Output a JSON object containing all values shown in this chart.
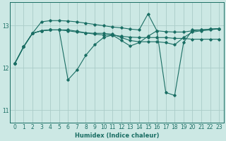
{
  "xlabel": "Humidex (Indice chaleur)",
  "background_color": "#cce8e4",
  "grid_color": "#aaccc8",
  "line_color": "#1a6e64",
  "xlim": [
    -0.5,
    23.5
  ],
  "ylim": [
    10.7,
    13.55
  ],
  "yticks": [
    11,
    12,
    13
  ],
  "xticks": [
    0,
    1,
    2,
    3,
    4,
    5,
    6,
    7,
    8,
    9,
    10,
    11,
    12,
    13,
    14,
    15,
    16,
    17,
    18,
    19,
    20,
    21,
    22,
    23
  ],
  "lines": [
    {
      "x": [
        0,
        1,
        2,
        3,
        4,
        5,
        6,
        7,
        8,
        9,
        10,
        11,
        12,
        13,
        14,
        15,
        16,
        17,
        18,
        19,
        20,
        21,
        22,
        23
      ],
      "y": [
        12.1,
        12.5,
        12.82,
        13.09,
        13.12,
        13.12,
        13.11,
        13.09,
        13.06,
        13.03,
        13.0,
        12.97,
        12.95,
        12.92,
        12.9,
        13.28,
        12.88,
        12.86,
        12.85,
        12.85,
        12.88,
        12.9,
        12.92,
        12.93
      ]
    },
    {
      "x": [
        0,
        1,
        2,
        3,
        4,
        5,
        6,
        7,
        8,
        9,
        10,
        11,
        12,
        13,
        14,
        15,
        16,
        17,
        18,
        19,
        20,
        21,
        22,
        23
      ],
      "y": [
        12.1,
        12.5,
        12.82,
        12.88,
        12.9,
        12.9,
        12.9,
        12.87,
        12.83,
        12.8,
        12.78,
        12.78,
        12.75,
        12.73,
        12.72,
        12.72,
        12.72,
        12.72,
        12.7,
        12.7,
        12.68,
        12.68,
        12.68,
        12.68
      ]
    },
    {
      "x": [
        0,
        1,
        2,
        3,
        4,
        5,
        6,
        7,
        8,
        9,
        10,
        11,
        12,
        13,
        14,
        15,
        16,
        17,
        18,
        19,
        20,
        21,
        22,
        23
      ],
      "y": [
        12.1,
        12.5,
        12.82,
        12.88,
        12.9,
        12.9,
        11.72,
        11.95,
        12.3,
        12.55,
        12.72,
        12.78,
        12.65,
        12.52,
        12.6,
        12.75,
        12.88,
        11.42,
        11.35,
        12.6,
        12.9,
        12.9,
        12.92,
        12.93
      ]
    },
    {
      "x": [
        0,
        1,
        2,
        3,
        4,
        5,
        6,
        7,
        8,
        9,
        10,
        11,
        12,
        13,
        14,
        15,
        16,
        17,
        18,
        19,
        20,
        21,
        22,
        23
      ],
      "y": [
        12.1,
        12.5,
        12.82,
        12.88,
        12.9,
        12.9,
        12.88,
        12.85,
        12.83,
        12.82,
        12.82,
        12.8,
        12.72,
        12.65,
        12.62,
        12.62,
        12.62,
        12.6,
        12.55,
        12.72,
        12.85,
        12.88,
        12.9,
        12.93
      ]
    }
  ]
}
